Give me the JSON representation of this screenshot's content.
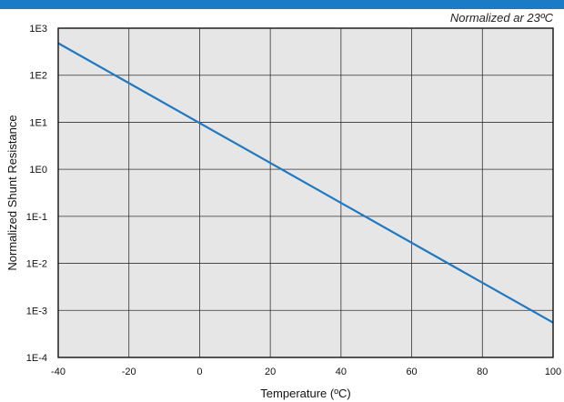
{
  "note": "Normalized ar 23ºC",
  "chart_data": {
    "type": "line",
    "title": "",
    "xlabel": "Temperature (ºC)",
    "ylabel": "Normalized Shunt Resistance",
    "xlim": [
      -40,
      100
    ],
    "ylim": [
      0.0001,
      1000
    ],
    "yscale": "log",
    "grid": true,
    "x_ticks": [
      -40,
      -20,
      0,
      20,
      40,
      60,
      80,
      100
    ],
    "x_tick_labels": [
      "-40",
      "-20",
      "0",
      "20",
      "40",
      "60",
      "80",
      "100"
    ],
    "y_ticks": [
      1000,
      100,
      10,
      1,
      0.1,
      0.01,
      0.001,
      0.0001
    ],
    "y_tick_labels": [
      "1E3",
      "1E2",
      "1E1",
      "1E0",
      "1E-1",
      "1E-2",
      "1E-3",
      "1E-4"
    ],
    "series": [
      {
        "x": [
          -40,
          100
        ],
        "y": [
          480,
          0.00055
        ]
      }
    ],
    "colors": {
      "line": "#1f78c1",
      "plot_bg": "#e6e6e6",
      "grid": "#333333",
      "band": "#1b7bc4"
    }
  }
}
